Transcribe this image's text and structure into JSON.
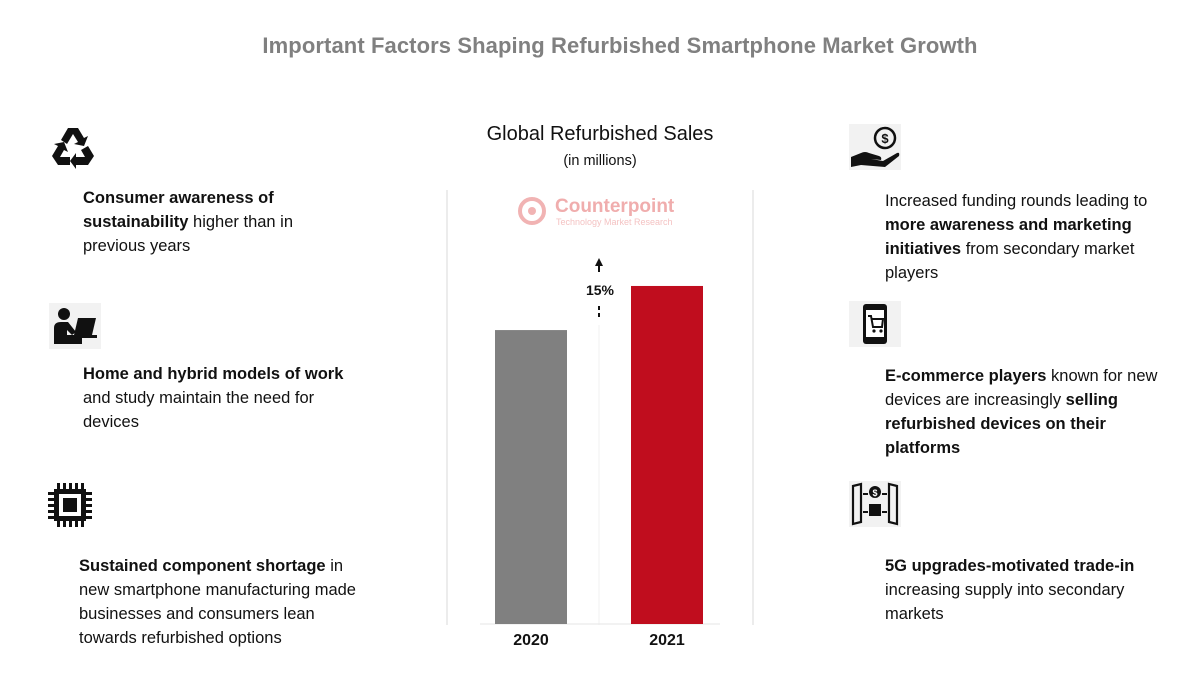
{
  "page": {
    "title": "Important Factors Shaping Refurbished Smartphone Market Growth"
  },
  "left_factors": [
    {
      "icon": "recycle-icon",
      "segments": [
        {
          "text": "Consumer awareness of sustainability",
          "bold": true
        },
        {
          "text": " higher than in previous years",
          "bold": false
        }
      ]
    },
    {
      "icon": "remote-work-icon",
      "segments": [
        {
          "text": "Home and hybrid models of work",
          "bold": true
        },
        {
          "text": " and study maintain the need for devices",
          "bold": false
        }
      ]
    },
    {
      "icon": "chip-icon",
      "segments": [
        {
          "text": "Sustained component shortage",
          "bold": true
        },
        {
          "text": " in new smartphone manufacturing made businesses and consumers lean towards refurbished options",
          "bold": false
        }
      ]
    }
  ],
  "right_factors": [
    {
      "icon": "funding-hand-icon",
      "segments": [
        {
          "text": "Increased funding rounds leading to ",
          "bold": false
        },
        {
          "text": "more awareness and marketing initiatives",
          "bold": true
        },
        {
          "text": " from secondary market players",
          "bold": false
        }
      ]
    },
    {
      "icon": "ecommerce-phone-icon",
      "segments": [
        {
          "text": "E-commerce players",
          "bold": true
        },
        {
          "text": " known for new devices are increasingly ",
          "bold": false
        },
        {
          "text": "selling refurbished devices on their platforms",
          "bold": true
        }
      ]
    },
    {
      "icon": "trade-in-icon",
      "segments": [
        {
          "text": "5G upgrades-motivated trade-in",
          "bold": true
        },
        {
          "text": " increasing supply into secondary markets",
          "bold": false
        }
      ]
    }
  ],
  "logo": {
    "name": "Counterpoint",
    "tagline": "Technology Market Research"
  },
  "chart_data": {
    "type": "bar",
    "title": "Global Refurbished Sales",
    "subtitle": "(in millions)",
    "categories": [
      "2020",
      "2021"
    ],
    "values": [
      100,
      115
    ],
    "bar_colors": [
      "#808080",
      "#c00d1e"
    ],
    "annotation": "15%",
    "ylim": [
      0,
      132
    ],
    "grid": false,
    "legend": "none"
  }
}
